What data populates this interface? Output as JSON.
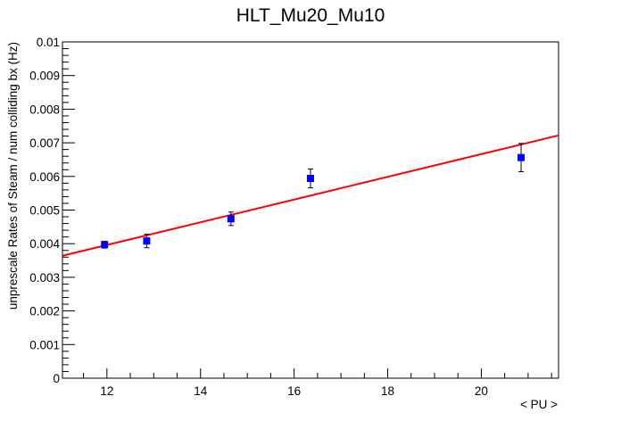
{
  "chart_data": {
    "type": "scatter",
    "title": "HLT_Mu20_Mu10",
    "xlabel": "< PU >",
    "ylabel": "unprescale Rates of Steam / num colliding bx (Hz)",
    "xlim": [
      11.05,
      21.65
    ],
    "ylim": [
      0,
      0.01
    ],
    "x_ticks": [
      "12",
      "14",
      "16",
      "18",
      "20"
    ],
    "y_ticks": [
      "0",
      "0.001",
      "0.002",
      "0.003",
      "0.004",
      "0.005",
      "0.006",
      "0.007",
      "0.008",
      "0.009",
      "0.01"
    ],
    "grid": false,
    "series": [
      {
        "x": [
          11.95,
          12.85,
          14.65,
          16.35,
          20.85
        ],
        "y": [
          0.00397,
          0.00408,
          0.00474,
          0.00594,
          0.00656
        ],
        "yerr": [
          0.0001,
          0.0002,
          0.0002,
          0.00028,
          0.00042
        ],
        "color": "#0000ff",
        "marker": "square"
      }
    ],
    "fit": {
      "type": "linear",
      "x": [
        11.05,
        21.65
      ],
      "y": [
        0.00364,
        0.00722
      ],
      "color": "#ff0000"
    }
  }
}
